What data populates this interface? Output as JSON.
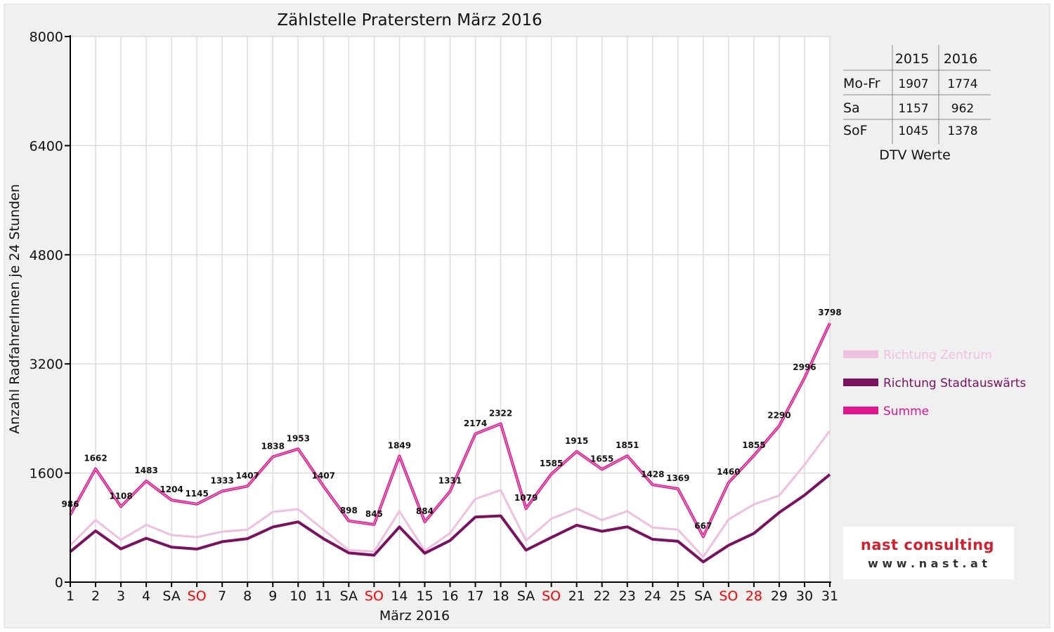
{
  "chart_data": {
    "type": "line",
    "title": "Zählstelle Praterstern März 2016",
    "xlabel": "März 2016",
    "ylabel": "Anzahl RadfahrerInnen je 24 Stunden",
    "ylim": [
      0,
      8000
    ],
    "yticks": [
      "0",
      "1600",
      "3200",
      "4800",
      "6400",
      "8000"
    ],
    "categories": [
      "1",
      "2",
      "3",
      "4",
      "SA",
      "SO",
      "7",
      "8",
      "9",
      "10",
      "11",
      "SA",
      "SO",
      "14",
      "15",
      "16",
      "17",
      "18",
      "SA",
      "SO",
      "21",
      "22",
      "23",
      "24",
      "25",
      "SA",
      "SO",
      "28",
      "29",
      "30",
      "31"
    ],
    "highlight_categories": [
      "SO",
      "28"
    ],
    "grid": true,
    "legend_position": "right",
    "series": [
      {
        "name": "Richtung Zentrum",
        "color": "#f0bfe0",
        "values": [
          540,
          910,
          620,
          840,
          690,
          660,
          740,
          770,
          1030,
          1070,
          770,
          470,
          450,
          1040,
          460,
          720,
          1220,
          1350,
          610,
          930,
          1080,
          910,
          1040,
          800,
          770,
          370,
          920,
          1140,
          1270,
          1720,
          2220
        ]
      },
      {
        "name": "Richtung Stadtauswärts",
        "color": "#7b1160",
        "values": [
          446,
          752,
          488,
          643,
          514,
          485,
          593,
          637,
          808,
          883,
          637,
          428,
          395,
          809,
          424,
          611,
          954,
          972,
          469,
          655,
          835,
          745,
          811,
          628,
          599,
          297,
          540,
          715,
          1020,
          1276,
          1578
        ]
      },
      {
        "name": "Summe",
        "color": "#e0148c",
        "values": [
          986,
          1662,
          1108,
          1483,
          1204,
          1145,
          1333,
          1407,
          1838,
          1953,
          1407,
          898,
          845,
          1849,
          884,
          1331,
          2174,
          2322,
          1079,
          1585,
          1915,
          1655,
          1851,
          1428,
          1369,
          667,
          1460,
          1855,
          2290,
          2996,
          3798
        ],
        "labels": [
          "986",
          "1662",
          "1108",
          "1483",
          "1204",
          "1145",
          "1333",
          "1407",
          "1838",
          "1953",
          "1407",
          "898",
          "845",
          "1849",
          "884",
          "1331",
          "2174",
          "2322",
          "1079",
          "1585",
          "1915",
          "1655",
          "1851",
          "1428",
          "1369",
          "667",
          "1460",
          "1855",
          "2290",
          "2996",
          "3798"
        ]
      }
    ]
  },
  "dtv_table": {
    "headers": [
      "",
      "2015",
      "2016"
    ],
    "rows": [
      {
        "label": "Mo-Fr",
        "v2015": "1907",
        "v2016": "1774"
      },
      {
        "label": "Sa",
        "v2015": "1157",
        "v2016": "962"
      },
      {
        "label": "SoF",
        "v2015": "1045",
        "v2016": "1378"
      }
    ],
    "caption": "DTV Werte"
  },
  "logo": {
    "name": "nast consulting",
    "url_text": "w w w . n a s t . a t",
    "text_color": "#d41f2d"
  },
  "colors": {
    "frame_bg": "#f0f0f0",
    "highlight_tick": "#ff0000"
  }
}
